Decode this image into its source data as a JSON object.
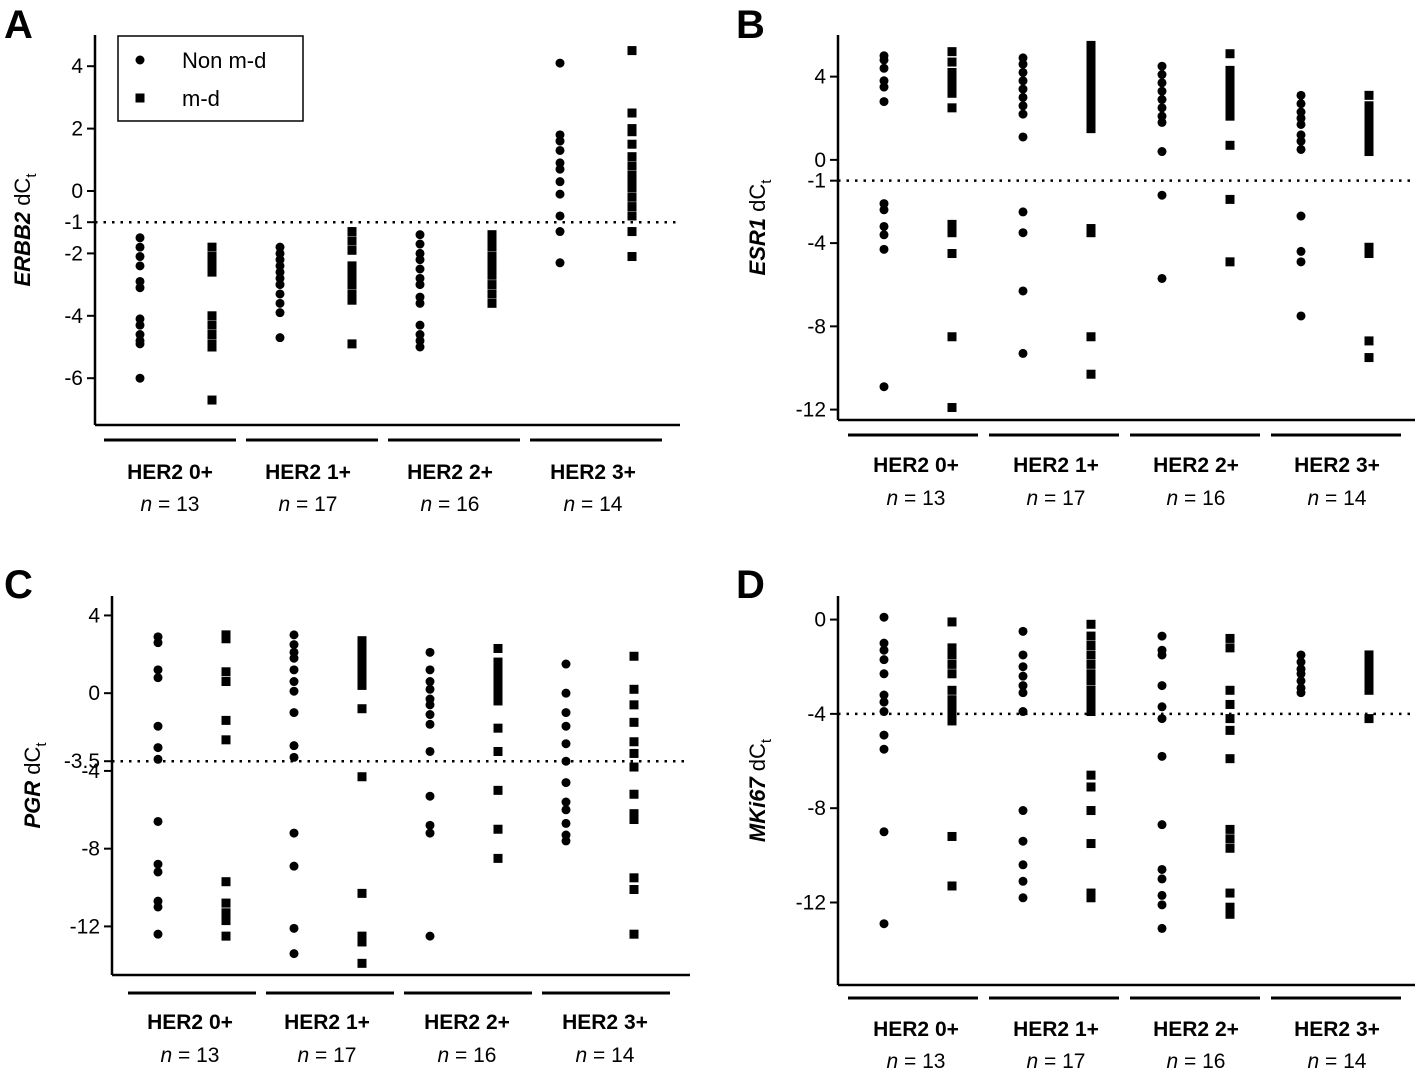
{
  "figure": {
    "legend": [
      {
        "label": "Non m-d",
        "marker": "circle"
      },
      {
        "label": "m-d",
        "marker": "square"
      }
    ],
    "colors": {
      "marker": "#000000",
      "axis": "#000000",
      "background": "#ffffff"
    }
  },
  "chart_data": [
    {
      "panel": "A",
      "type": "scatter",
      "ylabel": {
        "gene": "ERBB2",
        "suffix": " dC",
        "subscript": "t"
      },
      "yticks": [
        4,
        2,
        0,
        -1,
        -2,
        -4,
        -6
      ],
      "ylim": [
        -7.5,
        5
      ],
      "threshold": -1,
      "legend": true,
      "groups": [
        {
          "name": "HER2 0+",
          "n_prefix": "n",
          "n_value": "= 13",
          "non_md": [
            -1.5,
            -1.8,
            -2.1,
            -2.4,
            -2.9,
            -3.1,
            -4.1,
            -4.3,
            -4.6,
            -4.8,
            -4.9,
            -6.0
          ],
          "md": [
            -1.8,
            -2.1,
            -2.3,
            -2.4,
            -2.6,
            -4.0,
            -4.3,
            -4.6,
            -4.9,
            -5.0,
            -6.7
          ]
        },
        {
          "name": "HER2 1+",
          "n_prefix": "n",
          "n_value": "= 17",
          "non_md": [
            -1.8,
            -2.0,
            -2.2,
            -2.4,
            -2.6,
            -2.8,
            -3.0,
            -3.3,
            -3.6,
            -3.9,
            -4.7
          ],
          "md": [
            -1.3,
            -1.6,
            -1.9,
            -2.4,
            -2.6,
            -2.8,
            -3.0,
            -3.3,
            -3.5,
            -4.9
          ]
        },
        {
          "name": "HER2 2+",
          "n_prefix": "n",
          "n_value": "= 16",
          "non_md": [
            -1.4,
            -1.7,
            -2.0,
            -2.2,
            -2.5,
            -2.8,
            -3.0,
            -3.4,
            -3.6,
            -4.3,
            -4.6,
            -4.8,
            -5.0
          ],
          "md": [
            -1.4,
            -1.6,
            -1.8,
            -2.1,
            -2.3,
            -2.5,
            -2.7,
            -3.0,
            -3.3,
            -3.6
          ]
        },
        {
          "name": "HER2 3+",
          "n_prefix": "n",
          "n_value": "= 14",
          "non_md": [
            4.1,
            1.8,
            1.6,
            1.3,
            0.9,
            0.7,
            0.3,
            -0.1,
            -0.8,
            -1.3,
            -2.3
          ],
          "md": [
            4.5,
            2.5,
            2.0,
            1.9,
            1.5,
            1.1,
            0.8,
            0.5,
            0.3,
            0.1,
            -0.2,
            -0.5,
            -0.8,
            -1.3,
            -2.1
          ]
        }
      ]
    },
    {
      "panel": "B",
      "type": "scatter",
      "ylabel": {
        "gene": "ESR1",
        "suffix": " dC",
        "subscript": "t"
      },
      "yticks": [
        4,
        0,
        -1,
        -4,
        -8,
        -12
      ],
      "ylim": [
        -12.5,
        6
      ],
      "threshold": -1,
      "legend": false,
      "groups": [
        {
          "name": "HER2 0+",
          "n_prefix": "n",
          "n_value": "= 13",
          "non_md": [
            5.0,
            4.8,
            4.4,
            3.8,
            3.5,
            2.8,
            -2.1,
            -2.4,
            -3.2,
            -3.6,
            -4.3,
            -10.9
          ],
          "md": [
            5.2,
            4.7,
            4.2,
            3.9,
            3.5,
            3.2,
            2.5,
            -3.1,
            -3.5,
            -4.5,
            -8.5,
            -11.9
          ]
        },
        {
          "name": "HER2 1+",
          "n_prefix": "n",
          "n_value": "= 17",
          "non_md": [
            4.9,
            4.6,
            4.2,
            3.8,
            3.4,
            3.0,
            2.6,
            2.2,
            1.1,
            -2.5,
            -3.5,
            -6.3,
            -9.3
          ],
          "md": [
            5.5,
            5.1,
            4.7,
            4.3,
            3.9,
            3.5,
            3.1,
            2.7,
            2.3,
            1.9,
            1.5,
            -3.3,
            -3.5,
            -8.5,
            -10.3
          ]
        },
        {
          "name": "HER2 2+",
          "n_prefix": "n",
          "n_value": "= 16",
          "non_md": [
            4.5,
            4.1,
            3.7,
            3.3,
            2.9,
            2.5,
            2.1,
            1.8,
            0.4,
            -1.7,
            -5.7
          ],
          "md": [
            5.1,
            4.3,
            3.9,
            3.5,
            3.1,
            2.7,
            2.3,
            2.1,
            0.7,
            -1.9,
            -4.9
          ]
        },
        {
          "name": "HER2 3+",
          "n_prefix": "n",
          "n_value": "= 14",
          "non_md": [
            3.1,
            2.7,
            2.3,
            2.0,
            1.7,
            1.2,
            0.9,
            0.5,
            -2.7,
            -4.4,
            -4.9,
            -7.5
          ],
          "md": [
            3.1,
            2.6,
            2.2,
            1.8,
            1.5,
            1.1,
            0.8,
            0.4,
            -4.2,
            -4.5,
            -8.7,
            -9.5
          ]
        }
      ]
    },
    {
      "panel": "C",
      "type": "scatter",
      "ylabel": {
        "gene": "PGR",
        "suffix": " dC",
        "subscript": "t"
      },
      "yticks": [
        4,
        0,
        -3.5,
        -4,
        -8,
        -12
      ],
      "ylim": [
        -14.5,
        5
      ],
      "threshold": -3.5,
      "legend": false,
      "groups": [
        {
          "name": "HER2 0+",
          "n_prefix": "n",
          "n_value": "= 13",
          "non_md": [
            2.9,
            2.6,
            1.2,
            0.8,
            -1.7,
            -2.8,
            -3.4,
            -6.6,
            -8.8,
            -9.2,
            -10.7,
            -11.0,
            -12.4
          ],
          "md": [
            3.0,
            2.8,
            1.1,
            0.6,
            -1.4,
            -2.4,
            -9.7,
            -10.8,
            -11.3,
            -11.7,
            -12.5
          ]
        },
        {
          "name": "HER2 1+",
          "n_prefix": "n",
          "n_value": "= 17",
          "non_md": [
            3.0,
            2.5,
            2.1,
            1.8,
            1.2,
            0.6,
            0.1,
            -1.0,
            -2.7,
            -3.3,
            -7.2,
            -8.9,
            -12.1,
            -13.4
          ],
          "md": [
            2.7,
            2.4,
            2.0,
            1.6,
            1.2,
            0.8,
            0.4,
            -0.8,
            -4.3,
            -10.3,
            -12.5,
            -12.8,
            -13.9
          ]
        },
        {
          "name": "HER2 2+",
          "n_prefix": "n",
          "n_value": "= 16",
          "non_md": [
            2.1,
            1.2,
            0.6,
            0.2,
            -0.3,
            -0.6,
            -1.1,
            -1.6,
            -3.0,
            -5.3,
            -6.8,
            -7.2,
            -12.5
          ],
          "md": [
            2.3,
            1.6,
            1.2,
            0.9,
            0.6,
            0.3,
            0.0,
            -0.4,
            -1.8,
            -3.0,
            -5.0,
            -7.0,
            -8.5
          ]
        },
        {
          "name": "HER2 3+",
          "n_prefix": "n",
          "n_value": "= 14",
          "non_md": [
            1.5,
            0.0,
            -1.0,
            -1.7,
            -2.6,
            -3.5,
            -4.6,
            -5.6,
            -6.0,
            -6.7,
            -7.3,
            -7.6
          ],
          "md": [
            1.9,
            0.2,
            -0.6,
            -1.5,
            -2.5,
            -3.1,
            -3.8,
            -5.2,
            -6.2,
            -6.5,
            -9.5,
            -10.1,
            -12.4
          ]
        }
      ]
    },
    {
      "panel": "D",
      "type": "scatter",
      "ylabel": {
        "gene": "MKi67",
        "suffix": " dC",
        "subscript": "t"
      },
      "yticks": [
        0,
        -4,
        -8,
        -12
      ],
      "ylim": [
        -15.5,
        1
      ],
      "threshold": -4,
      "legend": false,
      "groups": [
        {
          "name": "HER2 0+",
          "n_prefix": "n",
          "n_value": "= 13",
          "non_md": [
            0.1,
            -1.0,
            -1.3,
            -1.7,
            -2.3,
            -3.2,
            -3.5,
            -3.9,
            -4.9,
            -5.5,
            -9.0,
            -12.9
          ],
          "md": [
            -0.1,
            -1.2,
            -1.5,
            -1.9,
            -2.3,
            -3.0,
            -3.4,
            -3.7,
            -4.0,
            -4.3,
            -9.2,
            -11.3
          ]
        },
        {
          "name": "HER2 1+",
          "n_prefix": "n",
          "n_value": "= 17",
          "non_md": [
            -0.5,
            -1.5,
            -2.0,
            -2.4,
            -2.8,
            -3.1,
            -3.9,
            -8.1,
            -9.4,
            -10.4,
            -11.1,
            -11.8
          ],
          "md": [
            -0.2,
            -0.7,
            -1.1,
            -1.5,
            -1.9,
            -2.3,
            -2.6,
            -3.0,
            -3.3,
            -3.6,
            -3.9,
            -6.6,
            -7.1,
            -8.1,
            -9.5,
            -11.6,
            -11.8
          ]
        },
        {
          "name": "HER2 2+",
          "n_prefix": "n",
          "n_value": "= 16",
          "non_md": [
            -0.7,
            -1.3,
            -1.5,
            -2.8,
            -3.7,
            -4.2,
            -5.8,
            -8.7,
            -10.6,
            -11.0,
            -11.7,
            -12.1,
            -13.1
          ],
          "md": [
            -0.8,
            -1.2,
            -3.0,
            -3.6,
            -4.2,
            -4.7,
            -5.9,
            -8.9,
            -9.3,
            -9.7,
            -11.6,
            -12.2,
            -12.5
          ]
        },
        {
          "name": "HER2 3+",
          "n_prefix": "n",
          "n_value": "= 14",
          "non_md": [
            -1.5,
            -1.8,
            -2.1,
            -2.3,
            -2.6,
            -2.9,
            -3.1
          ],
          "md": [
            -1.5,
            -1.8,
            -2.1,
            -2.4,
            -2.7,
            -3.0,
            -4.2
          ]
        }
      ]
    }
  ]
}
